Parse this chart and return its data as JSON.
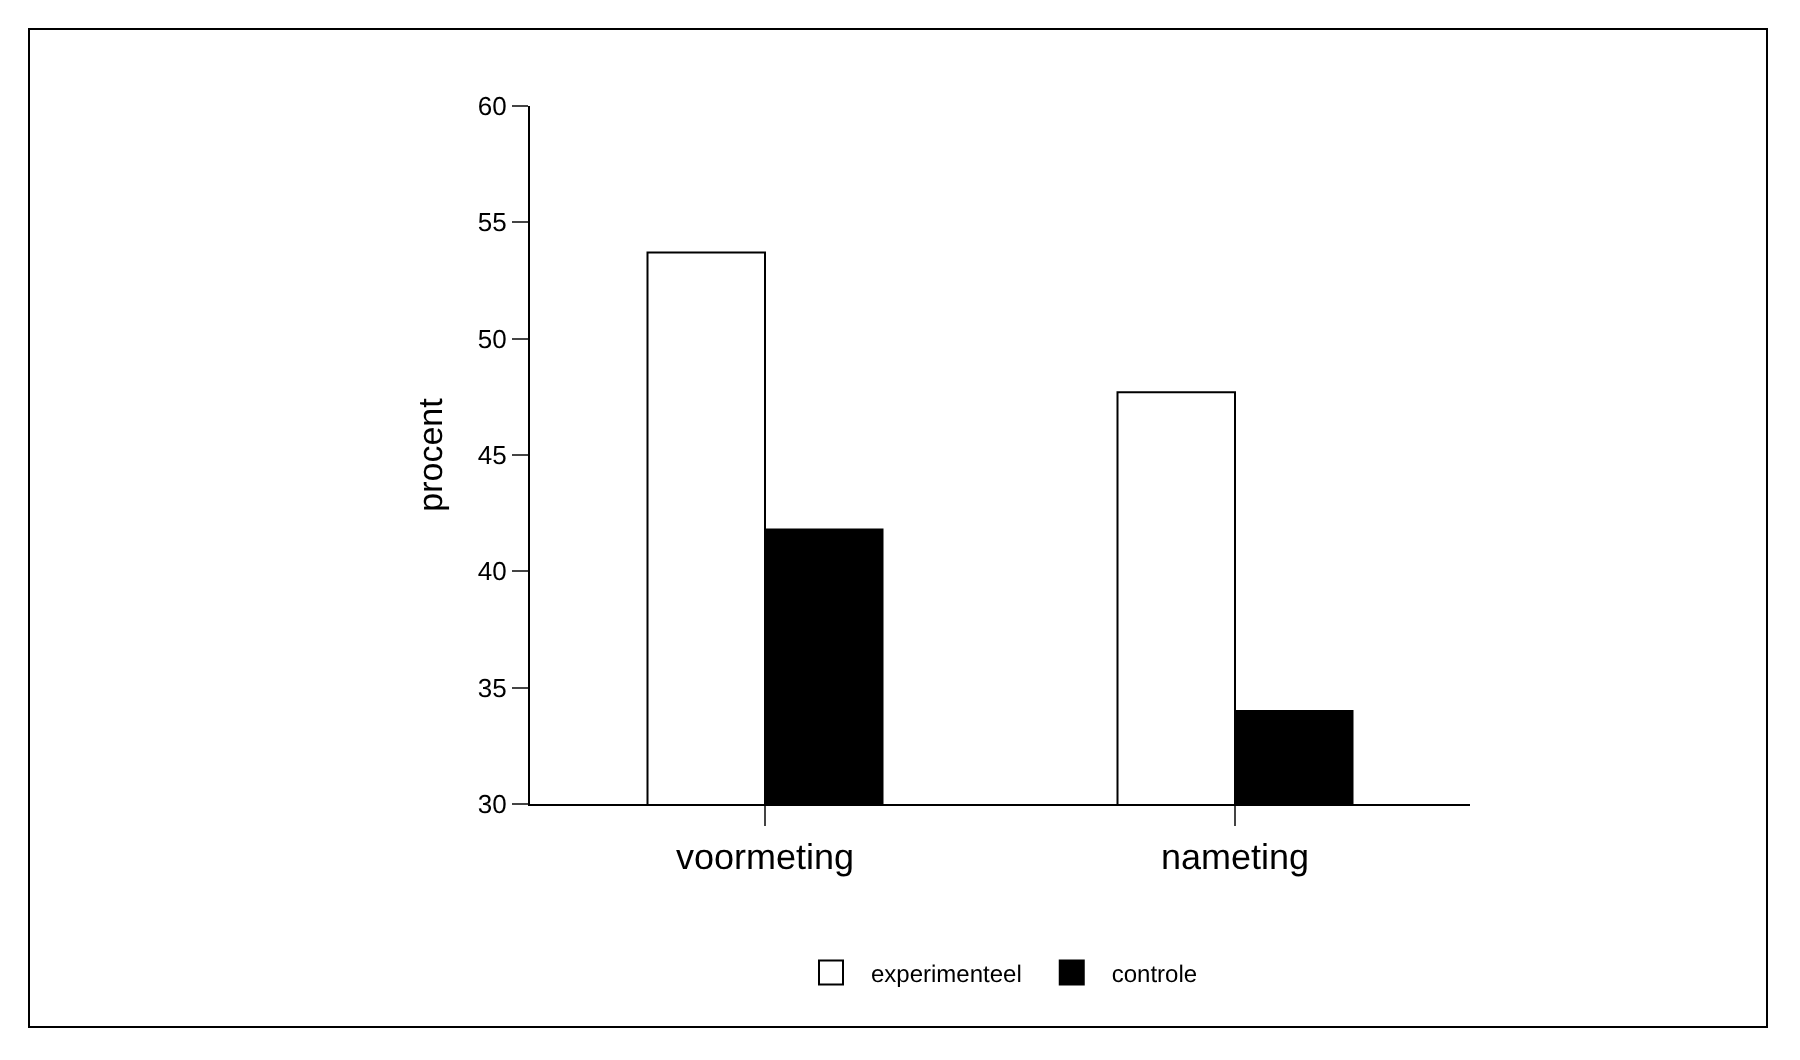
{
  "chart_data": {
    "type": "bar",
    "ylabel": "procent",
    "categories": [
      "voormeting",
      "nameting"
    ],
    "series": [
      {
        "name": "experimenteel",
        "color": "#ffffff",
        "values": [
          53.7,
          47.7
        ]
      },
      {
        "name": "controle",
        "color": "#000000",
        "values": [
          41.8,
          34.0
        ]
      }
    ],
    "ylim": [
      30,
      60
    ],
    "yticks": [
      30,
      35,
      40,
      45,
      50,
      55,
      60
    ],
    "grid": false,
    "legend": "bottom"
  }
}
